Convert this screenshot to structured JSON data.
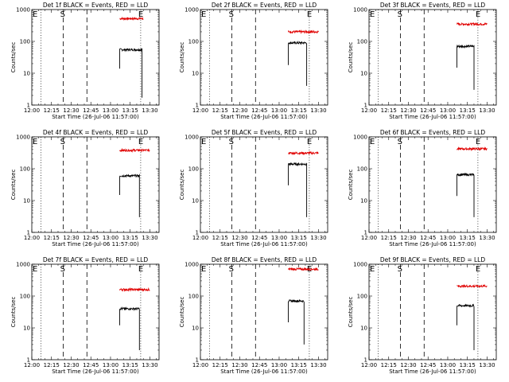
{
  "chart_data": {
    "type": "line",
    "yscale": "log",
    "ylim": [
      1,
      1000
    ],
    "yticks": [
      "1",
      "10",
      "100",
      "1000"
    ],
    "xlim": [
      "12:00",
      "13:37"
    ],
    "xticks": [
      "12:00",
      "12:15",
      "12:30",
      "12:45",
      "13:00",
      "13:15",
      "13:30"
    ],
    "marker_letters": {
      "e": "E",
      "s": "S"
    },
    "panels": [
      {
        "title": "Det 1f BLACK = Events, RED = LLD",
        "ylabel": "Counts/sec",
        "xlabel": "Start Time (26-Jul-06 11:57:00)",
        "markers": {
          "dotted": [
            "12:07",
            "13:23"
          ],
          "dashed": [
            "12:24",
            "12:42"
          ]
        },
        "series": [
          {
            "color": "#e00000",
            "start": "13:07",
            "end": "13:25",
            "level": 520
          },
          {
            "color": "#000000",
            "start": "13:07",
            "end": "13:24",
            "level": 55,
            "drops": [
              {
                "at": "13:24",
                "to": 1.7
              }
            ],
            "start_from": 14
          }
        ]
      },
      {
        "title": "Det 2f BLACK = Events, RED = LLD",
        "ylabel": "Counts/sec",
        "xlabel": "Start Time (26-Jul-06 11:57:00)",
        "markers": {
          "dotted": [
            "12:07",
            "13:23"
          ],
          "dashed": [
            "12:24",
            "12:42"
          ]
        },
        "series": [
          {
            "color": "#e00000",
            "start": "13:07",
            "end": "13:30",
            "level": 200
          },
          {
            "color": "#000000",
            "start": "13:07",
            "end": "13:21",
            "level": 90,
            "drops": [
              {
                "at": "13:21",
                "to": 4
              }
            ],
            "start_from": 18
          }
        ]
      },
      {
        "title": "Det 3f BLACK = Events, RED = LLD",
        "ylabel": "Counts/sec",
        "xlabel": "Start Time (26-Jul-06 11:57:00)",
        "markers": {
          "dotted": [
            "12:07",
            "13:23"
          ],
          "dashed": [
            "12:24",
            "12:42"
          ]
        },
        "series": [
          {
            "color": "#e00000",
            "start": "13:07",
            "end": "13:30",
            "level": 350
          },
          {
            "color": "#000000",
            "start": "13:07",
            "end": "13:20",
            "level": 70,
            "drops": [
              {
                "at": "13:20",
                "to": 3
              }
            ],
            "start_from": 15
          }
        ]
      },
      {
        "title": "Det 4f BLACK = Events, RED = LLD",
        "ylabel": "Counts/sec",
        "xlabel": "Start Time (26-Jul-06 11:57:00)",
        "markers": {
          "dotted": [
            "12:07",
            "13:23"
          ],
          "dashed": [
            "12:24",
            "12:42"
          ]
        },
        "series": [
          {
            "color": "#e00000",
            "start": "13:07",
            "end": "13:30",
            "level": 380
          },
          {
            "color": "#000000",
            "start": "13:07",
            "end": "13:22",
            "level": 60,
            "drops": [
              {
                "at": "13:22",
                "to": 3
              }
            ],
            "start_from": 15
          }
        ]
      },
      {
        "title": "Det 5f BLACK = Events, RED = LLD",
        "ylabel": "Counts/sec",
        "xlabel": "Start Time (26-Jul-06 11:57:00)",
        "markers": {
          "dotted": [
            "12:07",
            "13:23"
          ],
          "dashed": [
            "12:24",
            "12:42"
          ]
        },
        "series": [
          {
            "color": "#e00000",
            "start": "13:07",
            "end": "13:30",
            "level": 310
          },
          {
            "color": "#000000",
            "start": "13:07",
            "end": "13:21",
            "level": 140,
            "drops": [
              {
                "at": "13:21",
                "to": 3
              }
            ],
            "start_from": 30
          }
        ]
      },
      {
        "title": "Det 6f BLACK = Events, RED = LLD",
        "ylabel": "Counts/sec",
        "xlabel": "Start Time (26-Jul-06 11:57:00)",
        "markers": {
          "dotted": [
            "12:07",
            "13:23"
          ],
          "dashed": [
            "12:24",
            "12:42"
          ]
        },
        "series": [
          {
            "color": "#e00000",
            "start": "13:07",
            "end": "13:30",
            "level": 420
          },
          {
            "color": "#000000",
            "start": "13:07",
            "end": "13:20",
            "level": 65,
            "drops": [
              {
                "at": "13:20",
                "to": 3
              }
            ],
            "start_from": 14
          }
        ]
      },
      {
        "title": "Det 7f BLACK = Events, RED = LLD",
        "ylabel": "Counts/sec",
        "xlabel": "Start Time (26-Jul-06 11:57:00)",
        "markers": {
          "dotted": [
            "12:07",
            "13:23"
          ],
          "dashed": [
            "12:24",
            "12:42"
          ]
        },
        "series": [
          {
            "color": "#e00000",
            "start": "13:07",
            "end": "13:30",
            "level": 160
          },
          {
            "color": "#000000",
            "start": "13:07",
            "end": "13:22",
            "level": 40,
            "drops": [
              {
                "at": "13:22",
                "to": 2
              }
            ],
            "start_from": 12
          }
        ]
      },
      {
        "title": "Det 8f BLACK = Events, RED = LLD",
        "ylabel": "Counts/sec",
        "xlabel": "Start Time (26-Jul-06 11:57:00)",
        "markers": {
          "dotted": [
            "12:07",
            "13:23"
          ],
          "dashed": [
            "12:24",
            "12:42"
          ]
        },
        "series": [
          {
            "color": "#e00000",
            "start": "13:07",
            "end": "13:30",
            "level": 700
          },
          {
            "color": "#000000",
            "start": "13:07",
            "end": "13:19",
            "level": 70,
            "drops": [
              {
                "at": "13:19",
                "to": 3
              }
            ],
            "start_from": 15
          }
        ]
      },
      {
        "title": "Det 9f BLACK = Events, RED = LLD",
        "ylabel": "Counts/sec",
        "xlabel": "Start Time (26-Jul-06 11:57:00)",
        "markers": {
          "dotted": [
            "12:07",
            "13:23"
          ],
          "dashed": [
            "12:24",
            "12:42"
          ]
        },
        "series": [
          {
            "color": "#e00000",
            "start": "13:07",
            "end": "13:30",
            "level": 205
          },
          {
            "color": "#000000",
            "start": "13:07",
            "end": "13:20",
            "level": 50,
            "drops": [
              {
                "at": "13:20",
                "to": 2
              }
            ],
            "start_from": 12
          }
        ]
      }
    ]
  }
}
